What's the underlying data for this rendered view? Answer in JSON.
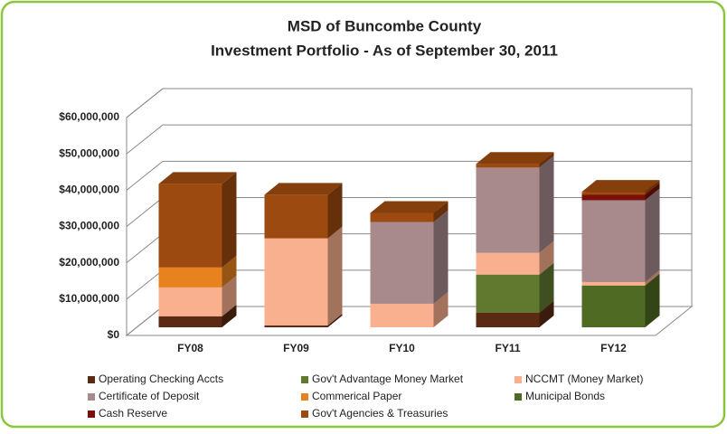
{
  "chart_data": {
    "type": "bar3d_stacked",
    "title": "MSD of Buncombe County",
    "subtitle": "Investment Portfolio - As of September 30, 2011",
    "categories": [
      "FY08",
      "FY09",
      "FY10",
      "FY11",
      "FY12"
    ],
    "ylim": [
      0,
      60000000
    ],
    "yticks": [
      {
        "value": 0,
        "label": "$0"
      },
      {
        "value": 10000000,
        "label": "$10,000,000"
      },
      {
        "value": 20000000,
        "label": "$20,000,000"
      },
      {
        "value": 30000000,
        "label": "$30,000,000"
      },
      {
        "value": 40000000,
        "label": "$40,000,000"
      },
      {
        "value": 50000000,
        "label": "$50,000,000"
      },
      {
        "value": 60000000,
        "label": "$60,000,000"
      }
    ],
    "grid": true,
    "series": [
      {
        "name": "Operating Checking Accts",
        "color": "#5a2a12",
        "values": [
          3000000,
          500000,
          0,
          4000000,
          0
        ]
      },
      {
        "name": "Gov't Advantage Money Market",
        "color": "#61792f",
        "values": [
          0,
          0,
          0,
          10500000,
          0
        ]
      },
      {
        "name": "Municipal Bonds",
        "color": "#4f6a22",
        "values": [
          0,
          0,
          0,
          0,
          11500000
        ]
      },
      {
        "name": "NCCMT (Money Market)",
        "color": "#f9b08e",
        "values": [
          8000000,
          24000000,
          6500000,
          6000000,
          1000000
        ]
      },
      {
        "name": "Certificate of Deposit",
        "color": "#a88a8d",
        "values": [
          0,
          0,
          22500000,
          23500000,
          22500000
        ]
      },
      {
        "name": "Commerical Paper",
        "color": "#e8821e",
        "values": [
          5500000,
          0,
          0,
          0,
          0
        ]
      },
      {
        "name": "Cash  Reserve",
        "color": "#7a0f0a",
        "values": [
          0,
          0,
          0,
          0,
          1500000
        ]
      },
      {
        "name": "Gov't Agencies & Treasuries",
        "color": "#9c4a0f",
        "values": [
          23000000,
          12000000,
          2500000,
          1000000,
          800000
        ]
      }
    ],
    "legend_order": [
      0,
      1,
      3,
      4,
      5,
      2,
      6,
      7
    ]
  }
}
